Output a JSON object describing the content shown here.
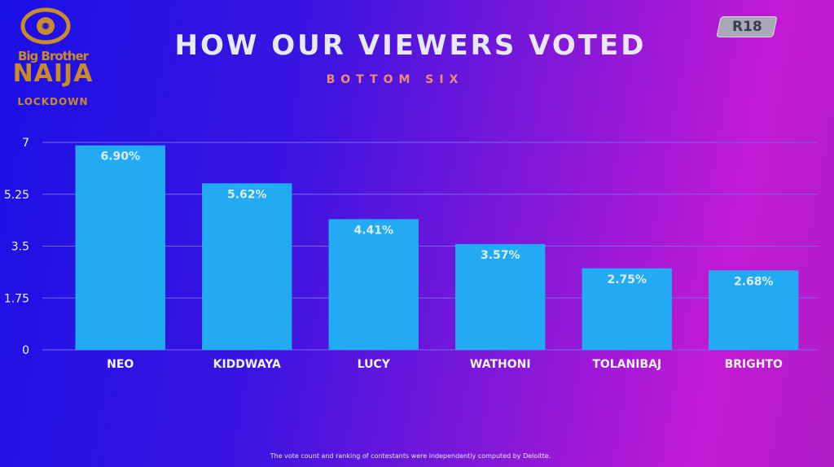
{
  "logo": {
    "line1": "Big Brother",
    "line2": "NAIJA",
    "line3": "LOCKDOWN"
  },
  "rating": "R18",
  "title": "HOW OUR VIEWERS VOTED",
  "subtitle": "BOTTOM SIX",
  "footnote": "The vote count and ranking of contestants were independently computed by Deloitte.",
  "colors": {
    "bar": "#22aaf2",
    "bar_label": "#ddeefa",
    "grid": "#7a66f0",
    "axis_text": "#f2f2fa"
  },
  "chart_data": {
    "type": "bar",
    "title": "HOW OUR VIEWERS VOTED",
    "subtitle": "BOTTOM SIX",
    "categories": [
      "NEO",
      "KIDDWAYA",
      "LUCY",
      "WATHONI",
      "TOLANIBAJ",
      "BRIGHTO"
    ],
    "values": [
      6.9,
      5.62,
      4.41,
      3.57,
      2.75,
      2.68
    ],
    "data_labels": [
      "6.90%",
      "5.62%",
      "4.41%",
      "3.57%",
      "2.75%",
      "2.68%"
    ],
    "yticks": [
      "0",
      "1.75",
      "3.5",
      "5.25",
      "7"
    ],
    "ylim": [
      0,
      7
    ],
    "grid": true,
    "legend": "none"
  }
}
